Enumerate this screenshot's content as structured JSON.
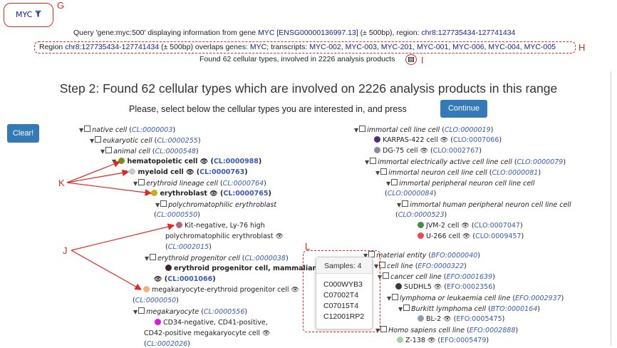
{
  "tab": {
    "label": "MYC",
    "marker": "G"
  },
  "query": {
    "p1": "Query 'gene:myc:500' displaying information from gene ",
    "gene_link": "MYC",
    "ens_link": "[ENSG00000136997.13]",
    "p2": " (± 500bp), region: ",
    "region_link": "chr8:127735434-127741434"
  },
  "overlap": {
    "p1": "Region ",
    "region_link": "chr8:127735434-127741434",
    "p2": " (± 500bp) overlaps genes: ",
    "gene_link": "MYC",
    "p3": "; transcripts: ",
    "transcripts": [
      "MYC-002",
      "MYC-003",
      "MYC-201",
      "MYC-001",
      "MYC-006",
      "MYC-004",
      "MYC-005"
    ],
    "marker": "H"
  },
  "found": {
    "text": "Found 62 cellular types, involved in 2226 analysis products",
    "marker": "I"
  },
  "step_title": "Step 2: Found 62 cellular types which are involved on 2226 analysis products in this range",
  "instruction": "Please, select below the cellular types you are interested in, and press",
  "buttons": {
    "continue": "Continue",
    "clear": "Clear!"
  },
  "colors": {
    "link": "#1b1f8a",
    "annotation": "#e0281e",
    "button": "#337ab7",
    "dot_hematopoietic": "#7a8a1e",
    "dot_myeloid": "#c9c9c9",
    "dot_erythroblast": "#b5b51e",
    "dot_kit_negative": "#b46a7a",
    "dot_erythroid_progenitor": "#3a2a2a",
    "dot_mep": "#f2b27a",
    "dot_cd34": "#d81ad8",
    "dot_karpas": "#4b2a80",
    "dot_dg75": "#8a8aa8",
    "dot_jvm2": "#4a8a4a",
    "dot_u266": "#e84a5a",
    "dot_sudhl5": "#3a3a3a",
    "dot_bl2": "#8aa0b4",
    "dot_z138": "#a8d0a8"
  },
  "left_tree": {
    "native": {
      "name": "native cell",
      "id": "CL:0000003"
    },
    "eukaryotic": {
      "name": "eukaryotic cell",
      "id": "CL:0000255"
    },
    "animal": {
      "name": "animal cell",
      "id": "CL:0000548"
    },
    "hematopoietic": {
      "name": "hematopoietic cell",
      "id": "CL:0000988"
    },
    "myeloid": {
      "name": "myeloid cell",
      "id": "CL:0000763"
    },
    "erythroid_lineage": {
      "name": "erythroid lineage cell",
      "id": "CL:0000764"
    },
    "erythroblast": {
      "name": "erythroblast",
      "id": "CL:0000765"
    },
    "polychromatophilic": {
      "name": "polychromatophilic erythroblast",
      "id": "CL:0000550"
    },
    "kit_negative": {
      "name_l1": "Kit-negative, Ly-76 high",
      "name_l2": "polychromatophilic erythroblast",
      "id": "CL:0002015"
    },
    "erythroid_progenitor_it": {
      "name": "erythroid progenitor cell",
      "id": "CL:0000038"
    },
    "erythroid_progenitor_bold": {
      "name": "erythroid progenitor cell, mammalian",
      "id": "CL:0001066"
    },
    "mep": {
      "name": "megakaryocyte-erythroid progenitor cell",
      "id": "CL:0000050"
    },
    "megakaryocyte": {
      "name": "megakaryocyte",
      "id": "CL:0000556"
    },
    "cd34": {
      "name_l1": "CD34-negative, CD41-positive,",
      "name_l2": "CD42-positive megakaryocyte cell",
      "id": "CL:0002026"
    }
  },
  "right_tree": {
    "immortal_line": {
      "name": "immortal cell line cell",
      "id": "CLO:0000019"
    },
    "karpas": {
      "name": "KARPAS-422 cell",
      "id": "CLO:0007066"
    },
    "dg75": {
      "name": "DG-75 cell",
      "id": "CLO:0002767"
    },
    "immortal_electric": {
      "name": "immortal electrically active cell line cell",
      "id": "CLO:0000079"
    },
    "immortal_neuron": {
      "name": "immortal neuron cell line cell",
      "id": "CLO:0000081"
    },
    "immortal_peripheral": {
      "name": "immortal peripheral neuron cell line cell",
      "id": "CLO:0000084"
    },
    "immortal_human_peripheral": {
      "name": "immortal human peripheral neuron cell line cell",
      "id": "CLO:0000523"
    },
    "jvm2": {
      "name": "JVM-2 cell",
      "id": "CLO:0007047"
    },
    "u266": {
      "name": "U-266 cell",
      "id": "CLO:0009457"
    },
    "material": {
      "name": "material entity",
      "id": "BFO:0000040"
    },
    "cell_line": {
      "name": "cell line",
      "id": "EFO:0000322"
    },
    "cancer_line": {
      "name": "cancer cell line",
      "id": "EFO:0001639"
    },
    "sudhl5": {
      "name": "SUDHL5",
      "id": "EFO:0002356"
    },
    "lymphoma": {
      "name": "lymphoma or leukaemia cell line",
      "id": "EFO:0002937"
    },
    "burkitt": {
      "name": "Burkitt lymphoma cell",
      "id": "BTO:0000164"
    },
    "bl2": {
      "name": "BL-2",
      "id": "EFO:0005475"
    },
    "homo": {
      "name": "Homo sapiens cell line",
      "id": "EFO:0002888"
    },
    "z138": {
      "name": "Z-138",
      "id": "EFO:0005479"
    }
  },
  "popup": {
    "title": "Samples: 4",
    "samples": [
      "C000WYB3",
      "C07002T4",
      "C07015T4",
      "C12001RP2"
    ],
    "marker": "L"
  },
  "annotations": {
    "k": "K",
    "j": "J"
  }
}
